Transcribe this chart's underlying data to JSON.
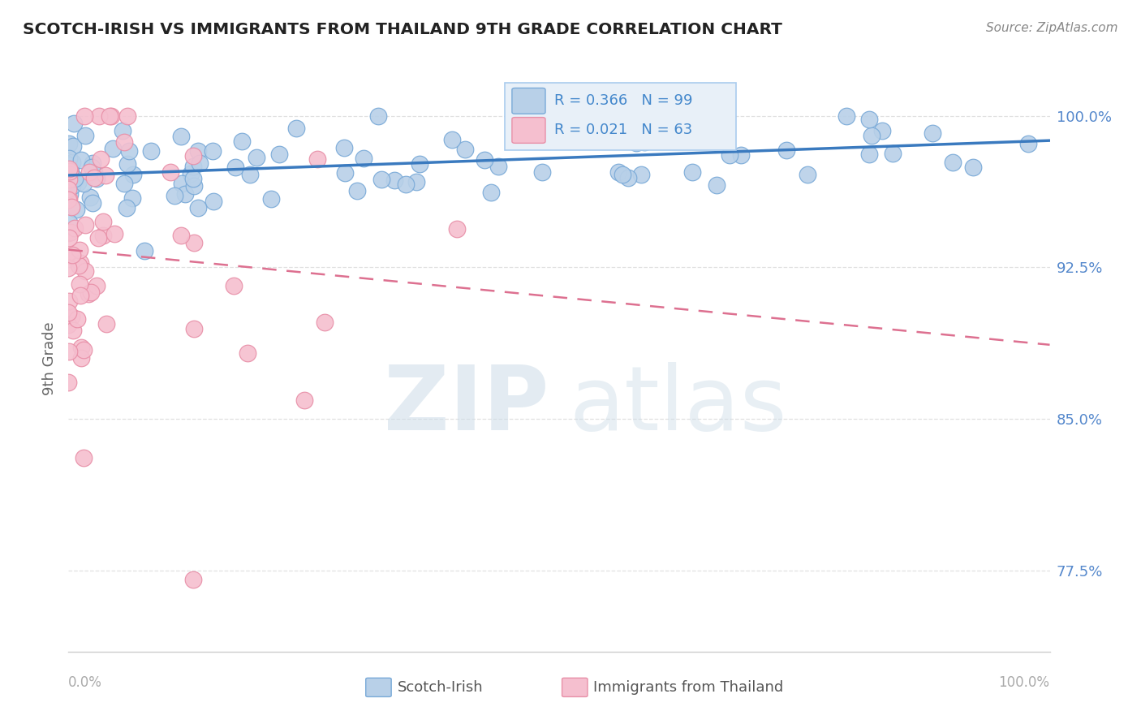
{
  "title": "SCOTCH-IRISH VS IMMIGRANTS FROM THAILAND 9TH GRADE CORRELATION CHART",
  "source_text": "Source: ZipAtlas.com",
  "ylabel": "9th Grade",
  "yticks": [
    0.775,
    0.85,
    0.925,
    1.0
  ],
  "ytick_labels": [
    "77.5%",
    "85.0%",
    "92.5%",
    "100.0%"
  ],
  "xmin": 0.0,
  "xmax": 1.0,
  "ymin": 0.735,
  "ymax": 1.025,
  "blue_R": 0.366,
  "blue_N": 99,
  "pink_R": 0.021,
  "pink_N": 63,
  "blue_color": "#b8d0e8",
  "blue_edge": "#7aaad8",
  "blue_line_color": "#3a7abf",
  "pink_color": "#f5bfcf",
  "pink_edge": "#e890a8",
  "pink_line_color": "#dd7090",
  "legend_bg": "#e8f0f8",
  "legend_border": "#aaccee",
  "legend_text_color": "#4488cc",
  "watermark_color": "#cddce8",
  "axis_color": "#cccccc",
  "grid_color": "#e0e0e0",
  "title_color": "#222222",
  "right_label_color": "#5588cc",
  "bottom_label_color": "#aaaaaa",
  "source_color": "#888888"
}
